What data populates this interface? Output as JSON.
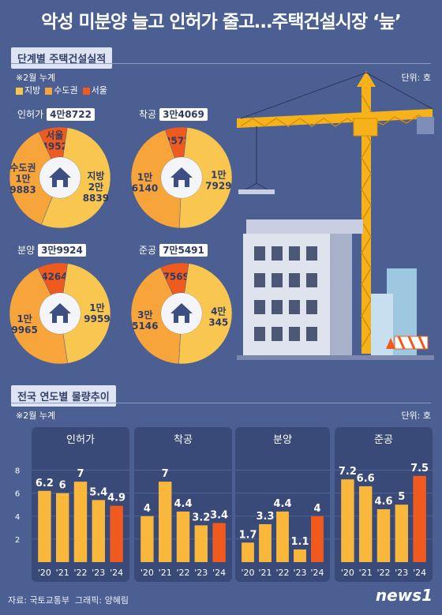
{
  "title": "악성 미분양 늘고 인허가 줄고…주택건설시장 ‘늪’",
  "section1": {
    "label": "단계별 주택건설실적",
    "note": "※2월 누계",
    "unit": "단위: 호"
  },
  "legend": [
    {
      "name": "지방",
      "color": "#f9c74f"
    },
    {
      "name": "수도권",
      "color": "#f7a43a"
    },
    {
      "name": "서울",
      "color": "#ef5a1e"
    }
  ],
  "section2": {
    "label": "전국 연도별 물량추이",
    "note": "※2월 누계",
    "unit": "단위: 호"
  },
  "footer": {
    "source": "자료: 국토교통부",
    "graphic": "그래픽: 양혜림",
    "logo": "news1"
  },
  "chart_data": [
    {
      "type": "pie",
      "title": "인허가",
      "total": "4만8722",
      "slices": [
        {
          "name": "서울",
          "value": 4952,
          "label": "서울\n4952"
        },
        {
          "name": "지방",
          "value": 28839,
          "label": "지방\n2만\n8839"
        },
        {
          "name": "수도권",
          "value": 19883,
          "label": "수도권\n1만\n9883"
        }
      ]
    },
    {
      "type": "pie",
      "title": "착공",
      "total": "3만4069",
      "slices": [
        {
          "name": "서울",
          "value": 2572,
          "label": "2572"
        },
        {
          "name": "지방",
          "value": 17929,
          "label": "1만\n7929"
        },
        {
          "name": "수도권",
          "value": 16140,
          "label": "1만\n6140"
        }
      ]
    },
    {
      "type": "pie",
      "title": "분양",
      "total": "3만9924",
      "slices": [
        {
          "name": "서울",
          "value": 4264,
          "label": "4264"
        },
        {
          "name": "지방",
          "value": 19959,
          "label": "1만\n9959"
        },
        {
          "name": "수도권",
          "value": 19965,
          "label": "1만\n9965"
        }
      ]
    },
    {
      "type": "pie",
      "title": "준공",
      "total": "7만5491",
      "slices": [
        {
          "name": "서울",
          "value": 7569,
          "label": "7569"
        },
        {
          "name": "지방",
          "value": 40345,
          "label": "4만\n345"
        },
        {
          "name": "수도권",
          "value": 35146,
          "label": "3만\n5146"
        }
      ]
    },
    {
      "type": "bar",
      "title": "인허가",
      "categories": [
        "'20",
        "'21",
        "'22",
        "'23",
        "'24"
      ],
      "values": [
        6.2,
        6,
        7,
        5.4,
        4.9
      ],
      "ylim": [
        0,
        9
      ],
      "yticks": [
        2,
        4,
        6,
        8
      ]
    },
    {
      "type": "bar",
      "title": "착공",
      "categories": [
        "'20",
        "'21",
        "'22",
        "'23",
        "'24"
      ],
      "values": [
        4,
        7,
        4.4,
        3.2,
        3.4
      ],
      "ylim": [
        0,
        9
      ]
    },
    {
      "type": "bar",
      "title": "분양",
      "categories": [
        "'20",
        "'21",
        "'22",
        "'23",
        "'24"
      ],
      "values": [
        1.7,
        3.3,
        4.4,
        1.1,
        4
      ],
      "ylim": [
        0,
        9
      ]
    },
    {
      "type": "bar",
      "title": "준공",
      "categories": [
        "'20",
        "'21",
        "'22",
        "'23",
        "'24"
      ],
      "values": [
        7.2,
        6.6,
        4.6,
        5,
        7.5
      ],
      "ylim": [
        0,
        9
      ]
    }
  ]
}
